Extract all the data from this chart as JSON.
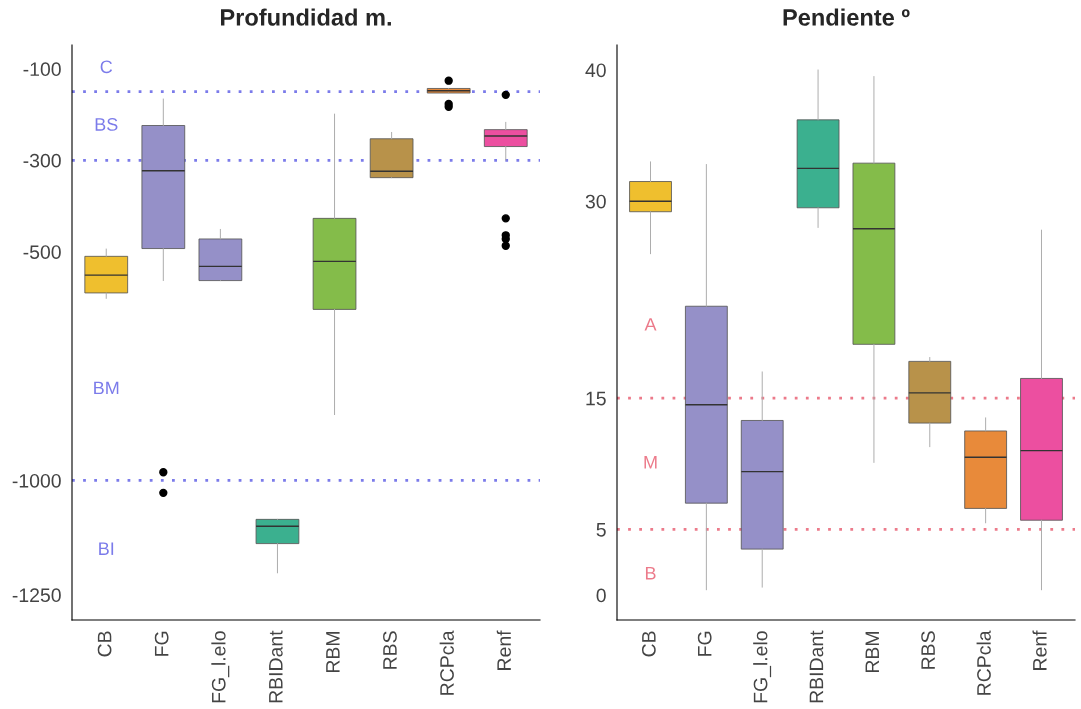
{
  "chart_data": [
    {
      "type": "box",
      "title": "Profundidad m.",
      "categories": [
        "CB",
        "FG",
        "FG_l.elo",
        "RBIDant",
        "RBM",
        "RBS",
        "RCPcla",
        "Renf"
      ],
      "colors": [
        "#efbf2e",
        "#9590c8",
        "#9590c8",
        "#3bb08f",
        "#84bc4a",
        "#b8924a",
        "#e88a3a",
        "#ec4fa0"
      ],
      "boxes": [
        {
          "low": -602,
          "q1": -590,
          "median": -551,
          "q3": -510,
          "high": -494
        },
        {
          "low": -563,
          "q1": -493,
          "median": -323,
          "q3": -224,
          "high": -166,
          "outliers": [
            -982,
            -1027
          ]
        },
        {
          "low": -563,
          "q1": -563,
          "median": -532,
          "q3": -472,
          "high": -451
        },
        {
          "low": -1202,
          "q1": -1138,
          "median": -1100,
          "q3": -1085,
          "high": -1085
        },
        {
          "low": -856,
          "q1": -626,
          "median": -521,
          "q3": -427,
          "high": -199
        },
        {
          "low": -338,
          "q1": -338,
          "median": -324,
          "q3": -253,
          "high": -239
        },
        {
          "low": -153,
          "q1": -153,
          "median": -148,
          "q3": -143,
          "high": -143,
          "outliers": [
            -126,
            -177,
            -183
          ]
        },
        {
          "low": -300,
          "q1": -270,
          "median": -247,
          "q3": -233,
          "high": -217,
          "outliers": [
            -157,
            -427,
            -464,
            -472,
            -487
          ]
        }
      ],
      "ylim": [
        -1305,
        -48
      ],
      "yticks": [
        -100,
        -300,
        -500,
        -1000,
        -1250
      ],
      "grid": false,
      "ref_lines": [
        {
          "axis": "y",
          "value": -150,
          "color": "#7b7bea",
          "line_style": "dotted"
        },
        {
          "axis": "y",
          "value": -300,
          "color": "#7b7bea",
          "line_style": "dotted"
        },
        {
          "axis": "y",
          "value": -1000,
          "color": "#7b7bea",
          "line_style": "dotted"
        }
      ],
      "annotations": [
        "C",
        "BS",
        "BM",
        "BI"
      ]
    },
    {
      "type": "box",
      "title": "Pendiente º",
      "categories": [
        "CB",
        "FG",
        "FG_l.elo",
        "RBIDant",
        "RBM",
        "RBS",
        "RCPcla",
        "Renf"
      ],
      "colors": [
        "#efbf2e",
        "#9590c8",
        "#9590c8",
        "#3bb08f",
        "#84bc4a",
        "#b8924a",
        "#e88a3a",
        "#ec4fa0"
      ],
      "boxes": [
        {
          "low": 26.0,
          "q1": 29.2,
          "median": 30.0,
          "q3": 31.5,
          "high": 33.0
        },
        {
          "low": 0.4,
          "q1": 7.0,
          "median": 14.5,
          "q3": 22.0,
          "high": 32.8
        },
        {
          "low": 0.6,
          "q1": 3.5,
          "median": 9.4,
          "q3": 13.3,
          "high": 17.0
        },
        {
          "low": 28.0,
          "q1": 29.5,
          "median": 32.5,
          "q3": 36.2,
          "high": 40.0
        },
        {
          "low": 10.1,
          "q1": 19.1,
          "median": 27.9,
          "q3": 32.9,
          "high": 39.5
        },
        {
          "low": 11.3,
          "q1": 13.1,
          "median": 15.4,
          "q3": 17.8,
          "high": 18.1
        },
        {
          "low": 5.5,
          "q1": 6.6,
          "median": 10.5,
          "q3": 12.5,
          "high": 13.5
        },
        {
          "low": 0.4,
          "q1": 5.7,
          "median": 11.0,
          "q3": 16.5,
          "high": 27.8
        }
      ],
      "ylim": [
        -1.9,
        41.9
      ],
      "yticks": [
        0,
        5,
        15,
        30,
        40
      ],
      "grid": false,
      "ref_lines": [
        {
          "axis": "y",
          "value": 15,
          "color": "#ec7a8a",
          "line_style": "dotted"
        },
        {
          "axis": "y",
          "value": 5,
          "color": "#ec7a8a",
          "line_style": "dotted"
        }
      ],
      "annotations": [
        "A",
        "M",
        "B"
      ]
    }
  ]
}
